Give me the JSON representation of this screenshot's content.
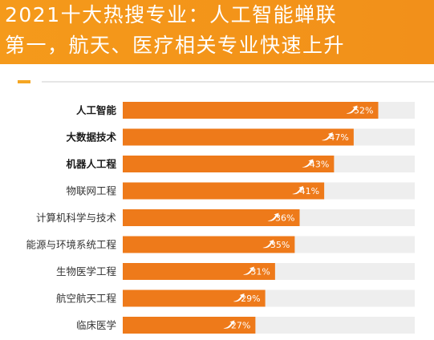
{
  "header": {
    "title_line1": "2021十大热搜专业：人工智能蝉联",
    "title_line2": "第一，航天、医疗相关专业快速上升"
  },
  "colors": {
    "banner": "#f39419",
    "bar_start": "#f5b21e",
    "bar_end": "#ee7a1a",
    "track": "#eeeeee"
  },
  "chart_data": {
    "type": "bar",
    "orientation": "horizontal",
    "categories": [
      "人工智能",
      "大数据技术",
      "机器人工程",
      "物联网工程",
      "计算机科学与技术",
      "能源与环境系统工程",
      "生物医学工程",
      "航空航天工程",
      "临床医学"
    ],
    "values": [
      52,
      47,
      43,
      41,
      36,
      35,
      31,
      29,
      27
    ],
    "value_labels": [
      "52%",
      "47%",
      "43%",
      "41%",
      "36%",
      "35%",
      "31%",
      "29%",
      "27%"
    ],
    "bold_categories": [
      0,
      1,
      2
    ],
    "xlim": [
      0,
      100
    ],
    "icon": "rising-arrow-icon"
  }
}
